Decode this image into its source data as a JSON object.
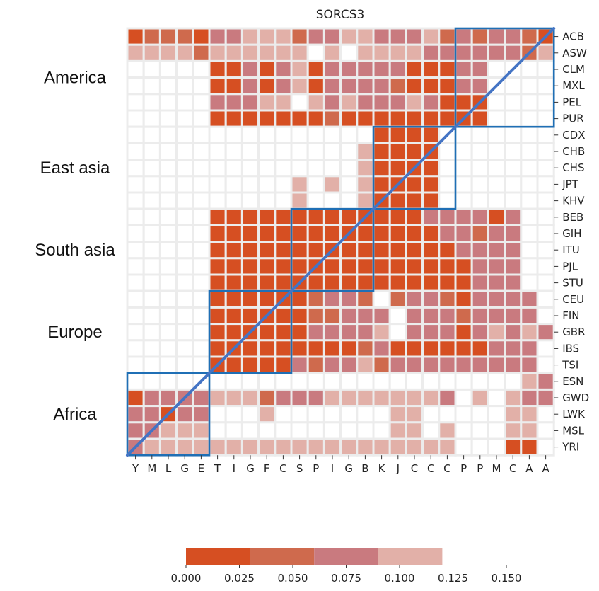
{
  "chart_data": {
    "type": "heatmap",
    "title": "SORCS3",
    "row_labels": [
      "ACB",
      "ASW",
      "CLM",
      "MXL",
      "PEL",
      "PUR",
      "CDX",
      "CHB",
      "CHS",
      "JPT",
      "KHV",
      "BEB",
      "GIH",
      "ITU",
      "PJL",
      "STU",
      "CEU",
      "FIN",
      "GBR",
      "IBS",
      "TSI",
      "ESN",
      "GWD",
      "LWK",
      "MSL",
      "YRI"
    ],
    "col_labels": [
      "Y",
      "M",
      "L",
      "G",
      "E",
      "T",
      "I",
      "G",
      "F",
      "C",
      "S",
      "P",
      "I",
      "G",
      "B",
      "K",
      "J",
      "C",
      "C",
      "C",
      "P",
      "P",
      "M",
      "C",
      "A",
      "A"
    ],
    "note_values": "bin index per cell: 0 = 0.000-0.030, 1 = 0.030-0.060, 2 = 0.060-0.090, 3 = 0.090-0.120, null = blank",
    "bins": [
      "0011021223332231233332331022",
      "3333323333333.3.3333222213",
      "-----0020330322222000022--",
      "-----1023130322221201222--",
      "-----2223333.3232223200002--",
      "-----0000000010000000001--"
    ],
    "regions": [
      {
        "name": "America",
        "rows": [
          0,
          5
        ],
        "cols": [
          20,
          25
        ]
      },
      {
        "name": "East asia",
        "rows": [
          6,
          10
        ],
        "cols": [
          15,
          19
        ]
      },
      {
        "name": "South asia",
        "rows": [
          11,
          15
        ],
        "cols": [
          10,
          14
        ]
      },
      {
        "name": "Europe",
        "rows": [
          16,
          20
        ],
        "cols": [
          5,
          9
        ]
      },
      {
        "name": "Africa",
        "rows": [
          21,
          25
        ],
        "cols": [
          0,
          4
        ]
      }
    ],
    "colorbar": {
      "ticks": [
        "0.000",
        "0.025",
        "0.050",
        "0.075",
        "0.100",
        "0.125",
        "0.150"
      ],
      "tick_values": [
        0,
        0.025,
        0.05,
        0.075,
        0.1,
        0.125,
        0.15
      ],
      "bin_edges": [
        0,
        0.03,
        0.06,
        0.09,
        0.12
      ],
      "colors": [
        "#d64f22",
        "#cf6a4d",
        "#c97a7f",
        "#e2b0a8"
      ]
    },
    "box_color": "#1f6fb5",
    "diagonal_color": "#4474c4"
  }
}
